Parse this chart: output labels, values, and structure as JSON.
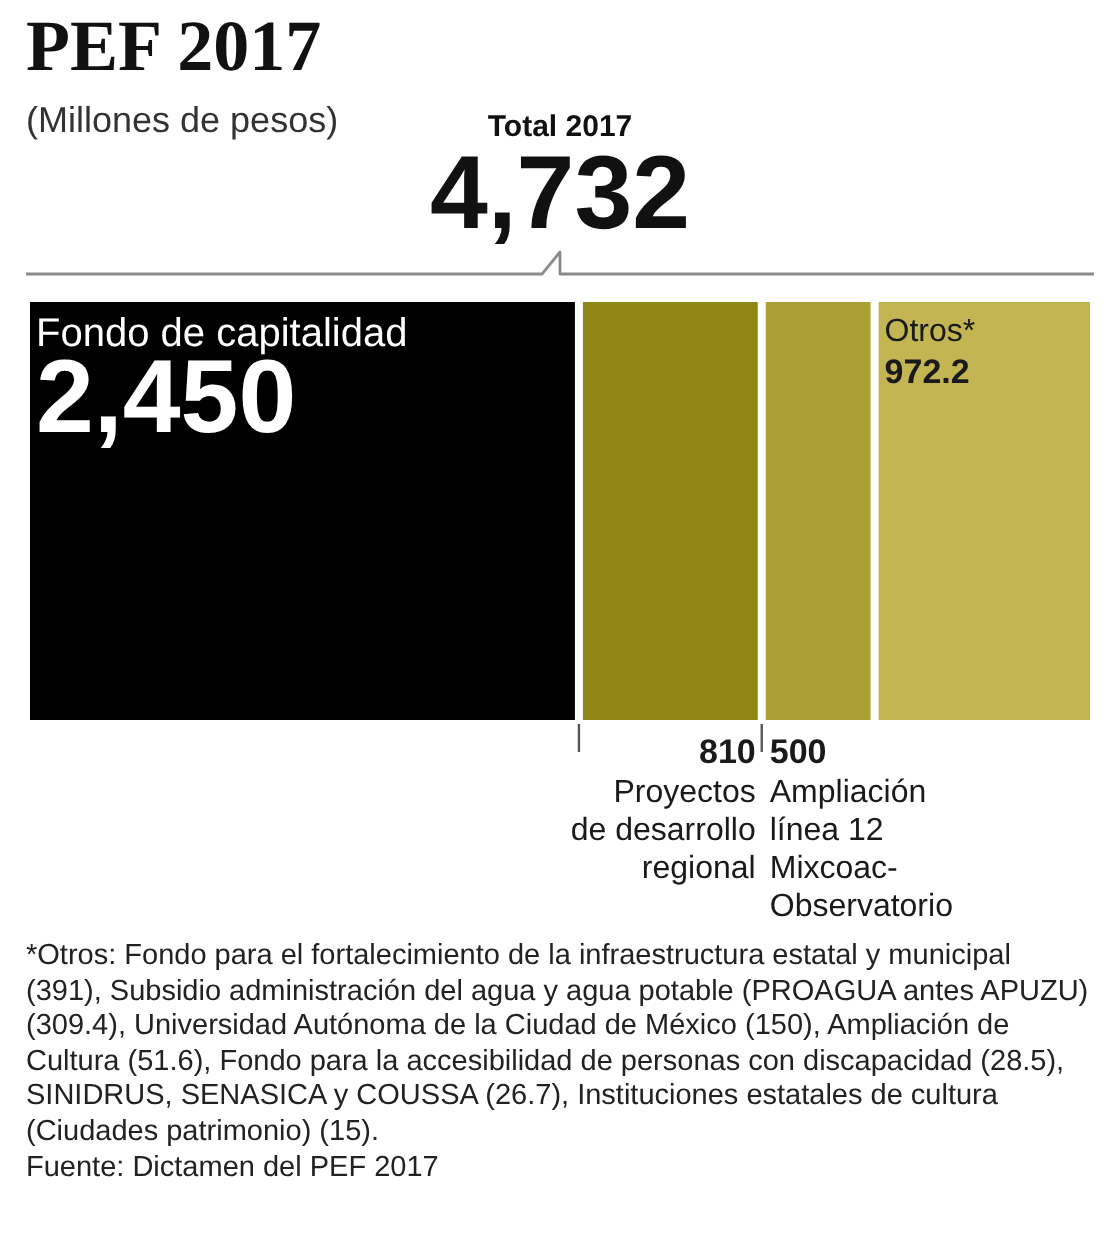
{
  "chart_data": {
    "type": "bar",
    "orientation": "horizontal",
    "stacked": true,
    "title": "PEF 2017",
    "subtitle": "(Millones de pesos)",
    "categories": [
      null
    ],
    "tick_labels": false,
    "series": [
      {
        "name": "Fondo de capitalidad",
        "color": "#000000",
        "values": [
          2450
        ],
        "value_labels": [
          "2,450"
        ]
      },
      {
        "name": "Proyectos de desarrollo regional",
        "color": "#918714",
        "values": [
          810
        ],
        "value_labels": [
          "810"
        ]
      },
      {
        "name": "Ampliación línea 12 Mixcoac-Observatorio",
        "color": "#aaa034",
        "values": [
          500
        ],
        "value_labels": [
          "500"
        ]
      },
      {
        "name": "Otros*",
        "color": "#c2b552",
        "values": [
          972.2
        ],
        "value_labels": [
          "972.2"
        ]
      }
    ],
    "totals": [
      "4,732"
    ],
    "annotations": [
      "Total 2017",
      "*Otros: Fondo para el fortalecimiento de la infraestructura estatal y municipal (391), Subsidio administración del agua y agua potable (PROAGUA antes APUZU) (309.4), Universidad Autónoma de la Ciudad de México (150), Ampliación de Cultura (51.6), Fondo para la accesibilidad de personas con discapacidad (28.5), SINIDRUS, SENASICA y COUSSA (26.7), Instituciones estatales de cultura (Ciudades patrimonio) (15).",
      "Fuente: Dictamen del PEF 2017"
    ]
  }
}
